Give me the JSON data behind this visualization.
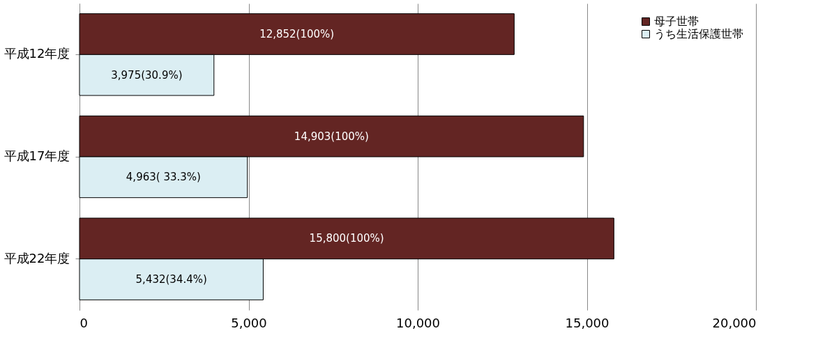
{
  "chart_data": {
    "type": "bar",
    "orientation": "horizontal",
    "categories": [
      "平成12年度",
      "平成17年度",
      "平成22年度"
    ],
    "series": [
      {
        "name": "母子世帯",
        "color": "#632523",
        "values": [
          12852,
          14903,
          15800
        ],
        "value_labels": [
          "12,852(100%)",
          "14,903(100%)",
          "15,800(100%)"
        ]
      },
      {
        "name": "うち生活保護世帯",
        "color": "#dbeef3",
        "values": [
          3975,
          4963,
          5432
        ],
        "value_labels": [
          "3,975(30.9%)",
          "4,963( 33.3%)",
          "5,432(34.4%)"
        ]
      }
    ],
    "xlim": [
      0,
      20000
    ],
    "xticks": [
      0,
      {
        "value": 5000,
        "label": "5,000"
      },
      {
        "value": 10000,
        "label": "10,000"
      },
      {
        "value": 15000,
        "label": "15,000"
      },
      {
        "value": 20000,
        "label": "20,000"
      }
    ],
    "grid": "x",
    "legend": "top right"
  }
}
